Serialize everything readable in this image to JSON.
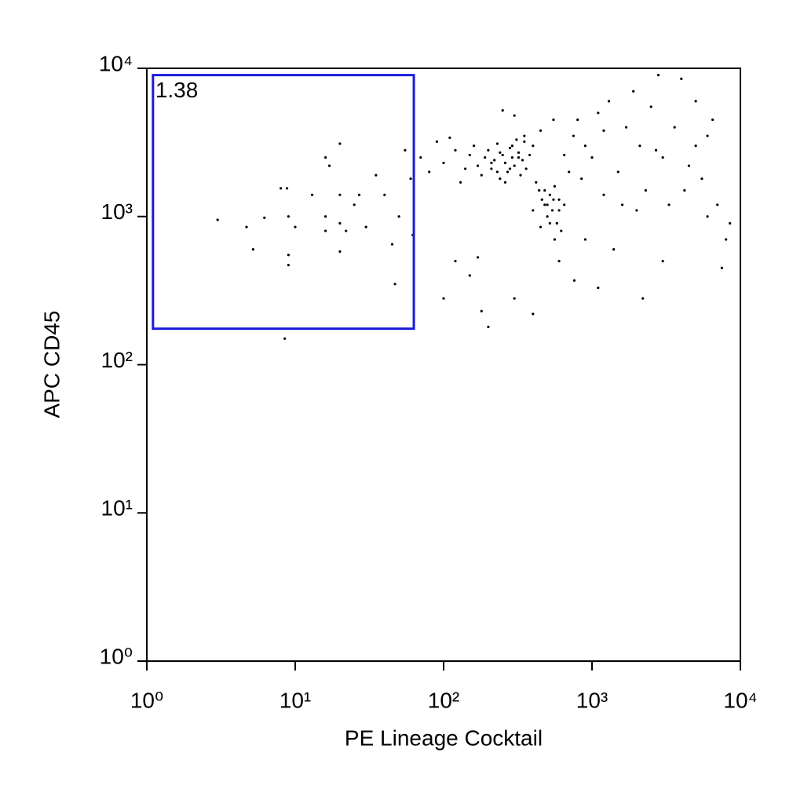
{
  "chart_data": {
    "type": "scatter",
    "x_label": "PE Lineage Cocktail",
    "y_label": "APC CD45",
    "xscale": "log",
    "yscale": "log",
    "xlim": [
      1,
      10000
    ],
    "ylim": [
      1,
      10000
    ],
    "xticks": [
      {
        "value": 1,
        "label": "10⁰"
      },
      {
        "value": 10,
        "label": "10¹"
      },
      {
        "value": 100,
        "label": "10²"
      },
      {
        "value": 1000,
        "label": "10³"
      },
      {
        "value": 10000,
        "label": "10⁴"
      }
    ],
    "yticks": [
      {
        "value": 1,
        "label": "10⁰"
      },
      {
        "value": 10,
        "label": "10¹"
      },
      {
        "value": 100,
        "label": "10²"
      },
      {
        "value": 1000,
        "label": "10³"
      },
      {
        "value": 10000,
        "label": "10⁴"
      }
    ],
    "color": "#000000",
    "x": [
      3,
      4.7,
      5.2,
      6.2,
      8,
      8.8,
      9,
      9,
      9,
      10,
      13,
      16,
      16,
      16,
      17,
      20,
      20,
      20,
      20,
      22,
      25,
      27,
      30,
      35,
      40,
      45,
      47,
      50,
      55,
      60,
      62,
      8.5,
      70,
      80,
      90,
      100,
      110,
      120,
      130,
      140,
      150,
      160,
      170,
      180,
      190,
      200,
      210,
      220,
      230,
      240,
      250,
      260,
      270,
      280,
      290,
      300,
      310,
      320,
      330,
      340,
      350,
      360,
      380,
      400,
      420,
      440,
      460,
      480,
      500,
      520,
      540,
      560,
      580,
      600,
      620,
      650,
      450,
      400,
      700,
      750,
      800,
      900,
      1000,
      1100,
      1200,
      1300,
      1500,
      1700,
      1900,
      2100,
      2300,
      2500,
      2800,
      3000,
      3300,
      3600,
      4000,
      4500,
      5000,
      5500,
      6000,
      6500,
      7000,
      7500,
      8000,
      8500,
      1400,
      2200,
      1100,
      760,
      400,
      300,
      200,
      180,
      150,
      100,
      170,
      120,
      600,
      900,
      2000,
      3000,
      5000,
      6000,
      4200,
      2700,
      1600,
      1200,
      850,
      650,
      450,
      550,
      300,
      250,
      350,
      230,
      260,
      280,
      320,
      240,
      210,
      290,
      500,
      550,
      520,
      480,
      600,
      560
    ],
    "values": [
      950,
      850,
      600,
      980,
      1550,
      1550,
      1000,
      550,
      470,
      850,
      1400,
      2500,
      1000,
      800,
      2200,
      3100,
      1400,
      900,
      580,
      800,
      1200,
      1400,
      850,
      1900,
      1400,
      650,
      350,
      1000,
      2800,
      1800,
      750,
      150,
      2500,
      2000,
      3200,
      2300,
      3400,
      2800,
      1700,
      2100,
      2600,
      3000,
      2200,
      1900,
      2500,
      2800,
      2100,
      2400,
      3100,
      1800,
      2600,
      2300,
      2000,
      2900,
      2500,
      2200,
      3300,
      2700,
      1900,
      2400,
      3500,
      2100,
      2600,
      3000,
      1700,
      1500,
      1300,
      1200,
      1000,
      1400,
      1100,
      1600,
      900,
      1300,
      800,
      1200,
      850,
      1100,
      2000,
      3500,
      4500,
      3000,
      2500,
      5000,
      3800,
      6000,
      2000,
      4000,
      7000,
      3000,
      1500,
      5500,
      9000,
      2500,
      1200,
      4000,
      8500,
      2200,
      6000,
      1800,
      3500,
      4500,
      1200,
      450,
      700,
      900,
      600,
      280,
      330,
      370,
      220,
      280,
      180,
      230,
      400,
      280,
      530,
      500,
      500,
      700,
      1100,
      500,
      3000,
      1000,
      1500,
      2800,
      1200,
      1400,
      1800,
      2600,
      3800,
      4500,
      4800,
      5200,
      3200,
      2000,
      1700,
      2100,
      2500,
      2700,
      2300,
      3000,
      1200,
      1300,
      900,
      1500,
      1100,
      700
    ],
    "gate": {
      "label": "1.38",
      "xlim": [
        1.1,
        63
      ],
      "ylim": [
        175,
        9000
      ],
      "color": "#1a1adb"
    }
  }
}
